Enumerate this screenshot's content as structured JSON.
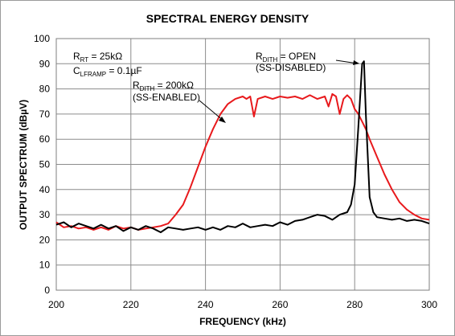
{
  "chart_data": {
    "type": "line",
    "title": "SPECTRAL ENERGY DENSITY",
    "xlabel": "FREQUENCY  (kHz)",
    "ylabel": "OUTPUT  SPECTRUM  (dBµV)",
    "xlim": [
      200,
      300
    ],
    "ylim": [
      0,
      100
    ],
    "xticks": [
      "200",
      "220",
      "240",
      "260",
      "280",
      "300"
    ],
    "yticks": [
      "0",
      "10",
      "20",
      "30",
      "40",
      "50",
      "60",
      "70",
      "80",
      "90",
      "100"
    ],
    "grid": true,
    "colors": {
      "red_series": "#e8191c",
      "black_series": "#000000"
    },
    "annotations": {
      "rt": {
        "main1": "R",
        "sub1": "RT",
        "rest1": " = 25kΩ"
      },
      "cl": {
        "main1": "C",
        "sub1": "LFRAMP",
        "rest1": " = 0.1µF"
      },
      "dith_open": {
        "main1": "R",
        "sub1": "DITH",
        "rest1": " = OPEN",
        "line2": "(SS-DISABLED)"
      },
      "dith_200k": {
        "main1": "R",
        "sub1": "DITH",
        "rest1": " = 200kΩ",
        "line2": "(SS-ENABLED)"
      }
    },
    "series": [
      {
        "color": "#e8191c",
        "x": [
          200,
          202,
          204,
          206,
          208,
          210,
          212,
          214,
          216,
          218,
          220,
          222,
          224,
          226,
          228,
          230,
          232,
          234,
          236,
          238,
          240,
          242,
          244,
          246,
          248,
          250,
          251,
          252,
          253,
          254,
          256,
          258,
          260,
          262,
          264,
          266,
          268,
          270,
          272,
          273,
          274,
          275,
          276,
          277,
          278,
          279,
          280,
          281,
          282,
          283,
          284,
          286,
          288,
          290,
          292,
          294,
          296,
          298,
          300
        ],
        "y": [
          27,
          25,
          25.5,
          24.5,
          25,
          24,
          25,
          24,
          25.5,
          24.5,
          25,
          24,
          24.5,
          25,
          25.5,
          26.5,
          30,
          34,
          41,
          49,
          57,
          64,
          70,
          74,
          76,
          77,
          76,
          77,
          69,
          76,
          77,
          76,
          77,
          76.5,
          77,
          76,
          77.5,
          76,
          77,
          73,
          78,
          77,
          70,
          76,
          77.5,
          76,
          72,
          70,
          67,
          64,
          60,
          53,
          46,
          40,
          35,
          32,
          30,
          28.5,
          28
        ]
      },
      {
        "color": "#000000",
        "x": [
          200,
          202,
          204,
          206,
          208,
          210,
          212,
          214,
          216,
          218,
          220,
          222,
          224,
          226,
          228,
          230,
          232,
          234,
          236,
          238,
          240,
          242,
          244,
          246,
          248,
          250,
          252,
          254,
          256,
          258,
          260,
          262,
          264,
          266,
          268,
          270,
          272,
          274,
          276,
          278,
          279,
          280,
          281,
          282,
          282.5,
          283,
          284,
          285,
          286,
          288,
          290,
          292,
          294,
          296,
          298,
          300
        ],
        "y": [
          26,
          27,
          25,
          26.5,
          25.5,
          24.5,
          26,
          24.5,
          25.5,
          23.5,
          25,
          24,
          25.5,
          24.5,
          23,
          25,
          24.5,
          24,
          24.5,
          25,
          24,
          25,
          24,
          25.5,
          25,
          26.5,
          25,
          25.5,
          26,
          25.5,
          27,
          26,
          27.5,
          28,
          29,
          30,
          29.5,
          28,
          30,
          31,
          34,
          42,
          65,
          90,
          91,
          70,
          37,
          31,
          29,
          28.5,
          28,
          28.5,
          27.5,
          28,
          27.5,
          26.5
        ]
      }
    ]
  }
}
